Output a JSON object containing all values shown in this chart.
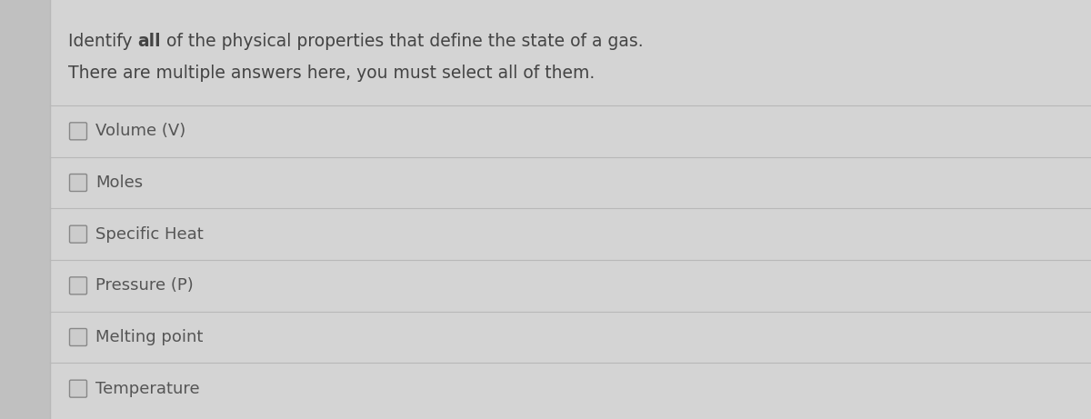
{
  "title_part1": "Identify ",
  "title_bold": "all",
  "title_part2": " of the physical properties that define the state of a gas.",
  "title_line2": "There are multiple answers here, you must select all of them.",
  "options": [
    "Volume (V)",
    "Moles",
    "Specific Heat",
    "Pressure (P)",
    "Melting point",
    "Temperature"
  ],
  "bg_color": "#c8c8c8",
  "panel_color": "#d4d4d4",
  "panel_left_color": "#c0c0c0",
  "text_color": "#555555",
  "title_color": "#444444",
  "line_color": "#b8b8b8",
  "checkbox_edge_color": "#888888",
  "checkbox_fill": "#cccccc",
  "title_fontsize": 13.5,
  "option_fontsize": 13,
  "left_bar_width": 0.048,
  "left_bar_color": "#b8b8b8"
}
